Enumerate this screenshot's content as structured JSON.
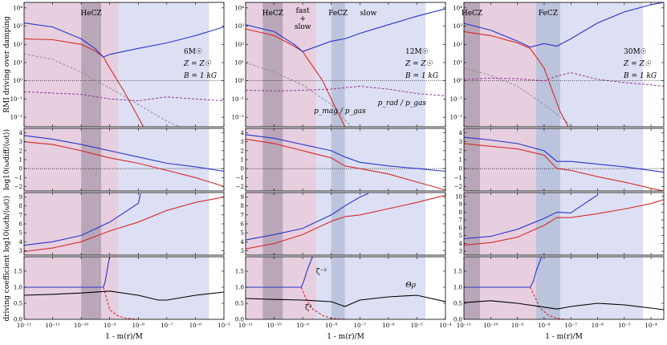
{
  "figure": {
    "colors": {
      "fast": "#d42a2a",
      "slow": "#2a35c8",
      "black": "#000000",
      "gray": "#8a8a8a",
      "purple": "#8a2a8a",
      "hecz_band": "#e7cfe0",
      "hecz_core": "#b9a6b9",
      "fecz_band": "#bcc3dc",
      "blue_band": "#dde0f4"
    },
    "xlabel": "1 - m(r)/M",
    "ylabels": [
      "RMI driving over damping",
      "log$_{10}$($\\omega_{\\rm diff}/\\langle\\omega_{\\rm t}\\rangle$)",
      "log$_{10}$($\\omega_{\\rm th}/\\langle\\omega_{\\rm t}\\rangle$)",
      "driving coefficient"
    ],
    "ylabel_display": [
      "RMI driving over damping",
      "log10(ωdiff/⟨ωt⟩)",
      "log10(ωth/⟨ωt⟩)",
      "driving coefficient"
    ]
  },
  "chart_data": [
    {
      "type": "line",
      "column": 0,
      "x_scale": "log",
      "xlim": [
        1e-12,
        1e-05
      ],
      "x_ticks": [
        "10^{-12}",
        "10^{-11}",
        "10^{-10}",
        "10^{-9}",
        "10^{-8}",
        "10^{-7}",
        "10^{-6}",
        "10^{-5}"
      ],
      "zone_labels": [
        "HeCZ"
      ],
      "annotation": [
        "6M☉",
        "Z = Z☉",
        "B = 1 kG"
      ],
      "regions": {
        "hecz_core": [
          1e-10,
          5e-10
        ],
        "hecz_band": [
          1e-12,
          2e-09
        ],
        "fecz": null,
        "blue": [
          2e-09,
          3e-06
        ]
      },
      "panels": {
        "rmi": {
          "y_scale": "log",
          "ylim": [
            0.003,
            20000
          ],
          "fast": {
            "x": [
              1e-12,
              1e-11,
              1e-10,
              3e-10,
              6e-10,
              1e-09,
              3e-09,
              1e-08,
              1.5e-08
            ],
            "y": [
              200,
              180,
              100,
              45,
              20,
              5,
              0.3,
              0.01,
              0.003
            ]
          },
          "slow": {
            "x": [
              1e-12,
              1e-11,
              1e-10,
              3e-10,
              6e-10,
              1e-09,
              1e-08,
              1e-07,
              1e-06,
              1e-05
            ],
            "y": [
              1500,
              900,
              200,
              60,
              20,
              28,
              60,
              120,
              300,
              900
            ]
          },
          "gray": {
            "x": [
              1e-12,
              1e-11,
              1e-10,
              1e-09,
              1e-08,
              1e-07,
              3e-07
            ],
            "y": [
              30,
              15,
              3,
              0.4,
              0.05,
              0.006,
              0.003
            ]
          },
          "purple": {
            "x": [
              1e-12,
              1e-10,
              1e-09,
              1e-08,
              1e-07,
              1e-06,
              1e-05
            ],
            "y": [
              0.25,
              0.18,
              0.1,
              0.08,
              0.13,
              0.1,
              0.08
            ]
          }
        },
        "diff": {
          "ylim": [
            -2.5,
            4.5
          ],
          "fast": {
            "x": [
              1e-12,
              1e-11,
              1e-10,
              1e-09,
              1e-08,
              1e-07,
              1e-06,
              1e-05
            ],
            "y": [
              3.0,
              2.7,
              2.0,
              1.2,
              0.6,
              -0.2,
              -1.0,
              -2.0
            ]
          },
          "slow": {
            "x": [
              1e-12,
              1e-11,
              1e-10,
              1e-09,
              1e-08,
              1e-07,
              1e-06,
              1e-05
            ],
            "y": [
              3.7,
              3.3,
              2.7,
              2.0,
              1.3,
              0.6,
              0.2,
              -0.3
            ]
          }
        },
        "therm": {
          "ylim": [
            2.5,
            9.5
          ],
          "fast": {
            "x": [
              1e-12,
              1e-11,
              1e-10,
              1e-09,
              1e-08,
              1e-07,
              1e-06,
              1e-05
            ],
            "y": [
              2.9,
              3.3,
              4.0,
              5.2,
              6.2,
              7.5,
              8.4,
              9.0
            ]
          },
          "slow": {
            "x": [
              1e-12,
              1e-11,
              1e-10,
              1e-09,
              1e-08,
              1.2e-08
            ],
            "y": [
              3.6,
              4.0,
              4.7,
              6.2,
              8.3,
              9.4
            ]
          }
        },
        "drive": {
          "ylim": [
            0.0,
            1.95
          ],
          "zeta_inv2": {
            "x": [
              1e-12,
              6e-10,
              7e-10,
              8e-10,
              9e-10,
              1e-09
            ],
            "y": [
              1.0,
              1.0,
              1.2,
              1.5,
              1.75,
              1.95
            ]
          },
          "zeta2": {
            "x": [
              6e-10,
              8e-10,
              1e-09,
              2e-09,
              4e-09,
              1e-08
            ],
            "y": [
              1.0,
              0.6,
              0.3,
              0.1,
              0.03,
              0.0
            ]
          },
          "theta": {
            "x": [
              1e-12,
              1e-11,
              1e-10,
              1e-09,
              1e-08,
              5e-08,
              1e-07,
              1e-06,
              1e-05
            ],
            "y": [
              0.75,
              0.78,
              0.82,
              0.88,
              0.75,
              0.6,
              0.6,
              0.75,
              0.85
            ]
          }
        }
      }
    },
    {
      "type": "line",
      "column": 1,
      "x_scale": "log",
      "xlim": [
        1e-11,
        0.0001
      ],
      "x_ticks": [
        "10^{-11}",
        "10^{-10}",
        "10^{-9}",
        "10^{-8}",
        "10^{-7}",
        "10^{-6}",
        "10^{-5}",
        "10^{-4}"
      ],
      "zone_labels": [
        "HeCZ",
        "FeCZ"
      ],
      "top_labels": {
        "fast": "fast",
        "plus": "+",
        "slow_under": "slow",
        "slow_right": "slow"
      },
      "annotation": [
        "12M☉",
        "Z = Z☉",
        "B = 1 kG"
      ],
      "curve_labels": {
        "pmag": "p_mag / p_gas",
        "prad": "p_rad / p_gas"
      },
      "regions": {
        "hecz_core": [
          4e-11,
          2e-10
        ],
        "hecz_band": [
          1e-11,
          3e-09
        ],
        "fecz": [
          1e-08,
          3e-08
        ],
        "blue": [
          3e-09,
          2e-05
        ]
      },
      "panels": {
        "rmi": {
          "y_scale": "log",
          "ylim": [
            0.003,
            20000
          ],
          "fast": {
            "x": [
              1e-11,
              1e-10,
              5e-10,
              1e-09,
              5e-09,
              1e-08,
              3e-08
            ],
            "y": [
              700,
              300,
              80,
              40,
              1,
              0.1,
              0.003
            ]
          },
          "slow": {
            "x": [
              1e-11,
              1e-10,
              5e-10,
              1e-09,
              1e-08,
              3e-08,
              1e-07,
              1e-06,
              1e-05,
              0.0001
            ],
            "y": [
              1200,
              500,
              100,
              40,
              150,
              200,
              400,
              1200,
              3500,
              9000
            ]
          },
          "gray": {
            "x": [
              1e-11,
              1e-10,
              1e-09,
              1e-08,
              5e-08
            ],
            "y": [
              10,
              3,
              0.6,
              0.05,
              0.003
            ]
          },
          "purple": {
            "x": [
              1e-11,
              1e-10,
              1e-09,
              1e-08,
              5e-08,
              1e-07,
              1e-06,
              1e-05,
              0.0001
            ],
            "y": [
              0.3,
              0.28,
              0.3,
              0.35,
              0.45,
              0.5,
              0.35,
              0.2,
              0.15
            ]
          }
        },
        "diff": {
          "ylim": [
            -2.5,
            4.5
          ],
          "fast": {
            "x": [
              1e-11,
              1e-10,
              1e-09,
              1e-08,
              3e-08,
              1e-07,
              1e-06,
              1e-05,
              0.0001
            ],
            "y": [
              3.3,
              2.8,
              2.0,
              1.2,
              0.3,
              0.0,
              -0.6,
              -1.5,
              -2.4
            ]
          },
          "slow": {
            "x": [
              1e-11,
              1e-10,
              1e-09,
              1e-08,
              3e-08,
              1e-07,
              1e-06,
              1e-05,
              0.0001
            ],
            "y": [
              3.8,
              3.4,
              2.7,
              2.0,
              1.3,
              0.7,
              0.3,
              0.0,
              -0.3
            ]
          }
        },
        "therm": {
          "ylim": [
            2.5,
            9.5
          ],
          "fast": {
            "x": [
              1e-11,
              1e-10,
              1e-09,
              1e-08,
              3e-08,
              1e-07,
              1e-06,
              1e-05,
              0.0001
            ],
            "y": [
              3.2,
              3.8,
              4.8,
              6.3,
              6.8,
              7.0,
              7.7,
              8.4,
              9.2
            ]
          },
          "slow": {
            "x": [
              1e-11,
              1e-10,
              1e-09,
              1e-08,
              3e-08,
              1e-07,
              2e-07
            ],
            "y": [
              4.2,
              4.8,
              5.5,
              7.0,
              8.0,
              9.0,
              9.4
            ]
          }
        },
        "drive": {
          "ylim": [
            0.0,
            1.95
          ],
          "zeta_inv2": {
            "x": [
              1e-11,
              9e-10,
              1.1e-09,
              1.4e-09,
              1.8e-09,
              2.2e-09
            ],
            "y": [
              1.0,
              1.0,
              1.2,
              1.5,
              1.75,
              1.95
            ]
          },
          "zeta2": {
            "x": [
              9e-10,
              1.2e-09,
              2e-09,
              5e-09,
              1e-08,
              3e-08
            ],
            "y": [
              1.0,
              0.7,
              0.35,
              0.12,
              0.03,
              0.0
            ]
          },
          "theta": {
            "x": [
              1e-11,
              1e-10,
              1e-09,
              1e-08,
              3e-08,
              1e-07,
              1e-06,
              1e-05,
              0.0001
            ],
            "y": [
              0.65,
              0.62,
              0.6,
              0.55,
              0.4,
              0.6,
              0.7,
              0.75,
              0.55
            ]
          }
        }
      }
    },
    {
      "type": "line",
      "column": 2,
      "x_scale": "log",
      "xlim": [
        1e-11,
        0.0003
      ],
      "x_ticks": [
        "10^{-11}",
        "10^{-10}",
        "10^{-9}",
        "10^{-8}",
        "10^{-7}",
        "10^{-6}",
        "10^{-5}",
        "10^{-4}"
      ],
      "zone_labels": [
        "HeCZ",
        "FeCZ"
      ],
      "annotation": [
        "30M☉",
        "Z = Z☉",
        "B = 1 kG"
      ],
      "regions": {
        "hecz_core": [
          1e-11,
          4e-11
        ],
        "hecz_band": [
          1e-11,
          6e-09
        ],
        "fecz": [
          5e-09,
          4e-08
        ],
        "blue": [
          6e-09,
          5e-05
        ]
      },
      "panels": {
        "rmi": {
          "y_scale": "log",
          "ylim": [
            0.003,
            20000
          ],
          "fast": {
            "x": [
              1e-11,
              1e-10,
              1e-09,
              3e-09,
              1e-08,
              2e-08,
              4e-08,
              8e-08
            ],
            "y": [
              500,
              300,
              120,
              60,
              5,
              0.3,
              0.02,
              0.003
            ]
          },
          "slow": {
            "x": [
              1e-11,
              1e-10,
              1e-09,
              3e-09,
              1e-08,
              3e-08,
              1e-07,
              1e-06,
              1e-05,
              0.0001,
              0.0003
            ],
            "y": [
              1400,
              600,
              150,
              70,
              110,
              80,
              200,
              1500,
              6000,
              15000,
              20000
            ]
          },
          "gray": {
            "x": [
              1e-11,
              1e-10,
              1e-09,
              1e-08,
              5e-08,
              1.2e-07
            ],
            "y": [
              5,
              2,
              0.5,
              0.05,
              0.008,
              0.003
            ]
          },
          "purple": {
            "x": [
              1e-11,
              1e-10,
              1e-09,
              1e-08,
              3e-08,
              1e-07,
              1e-06,
              1e-05,
              0.0001,
              0.0003
            ],
            "y": [
              1.2,
              1.4,
              1.3,
              1.0,
              1.8,
              2.8,
              1.2,
              0.8,
              0.6,
              0.5
            ]
          }
        },
        "diff": {
          "ylim": [
            -2.5,
            4.5
          ],
          "fast": {
            "x": [
              1e-11,
              1e-10,
              1e-09,
              1e-08,
              3e-08,
              1e-07,
              1e-06,
              1e-05,
              0.0001,
              0.0003
            ],
            "y": [
              2.8,
              2.5,
              2.2,
              1.5,
              0.0,
              -0.2,
              -0.9,
              -1.5,
              -2.2,
              -2.5
            ]
          },
          "slow": {
            "x": [
              1e-11,
              1e-10,
              1e-09,
              1e-08,
              3e-08,
              1e-07,
              1e-06,
              1e-05,
              0.0001,
              0.0003
            ],
            "y": [
              3.5,
              3.2,
              2.8,
              2.0,
              0.8,
              0.8,
              0.5,
              0.2,
              -0.2,
              -0.4
            ]
          }
        },
        "therm": {
          "ylim": [
            2.5,
            10.5
          ],
          "fast": {
            "x": [
              1e-11,
              1e-10,
              1e-09,
              1e-08,
              3e-08,
              1e-07,
              1e-06,
              1e-05,
              0.0001,
              0.0003
            ],
            "y": [
              3.8,
              4.1,
              4.8,
              6.3,
              7.3,
              7.3,
              7.8,
              8.4,
              9.1,
              9.6
            ]
          },
          "slow": {
            "x": [
              1e-11,
              1e-10,
              1e-09,
              1e-08,
              3e-08,
              1e-07,
              3e-07,
              1e-06
            ],
            "y": [
              4.6,
              4.9,
              5.8,
              7.2,
              8.0,
              7.9,
              9.0,
              10.2
            ]
          }
        },
        "drive": {
          "ylim": [
            0.0,
            1.95
          ],
          "zeta_inv2": {
            "x": [
              1e-11,
              3e-09,
              4e-09,
              5e-09,
              6.5e-09,
              8e-09
            ],
            "y": [
              1.0,
              1.0,
              1.2,
              1.5,
              1.75,
              1.95
            ]
          },
          "zeta2": {
            "x": [
              3e-09,
              4.5e-09,
              7e-09,
              1.5e-08,
              3e-08,
              6e-08
            ],
            "y": [
              1.0,
              0.7,
              0.35,
              0.12,
              0.03,
              0.0
            ]
          },
          "theta": {
            "x": [
              1e-11,
              1e-10,
              1e-09,
              1e-08,
              3e-08,
              1e-07,
              1e-06,
              1e-05,
              0.0001,
              0.0003
            ],
            "y": [
              0.52,
              0.58,
              0.5,
              0.38,
              0.32,
              0.4,
              0.5,
              0.45,
              0.35,
              0.3
            ]
          }
        }
      }
    }
  ],
  "labels": {
    "zeta_inv2": "ζ⁻²",
    "zeta2": "ζ²",
    "theta": "Θρ"
  }
}
